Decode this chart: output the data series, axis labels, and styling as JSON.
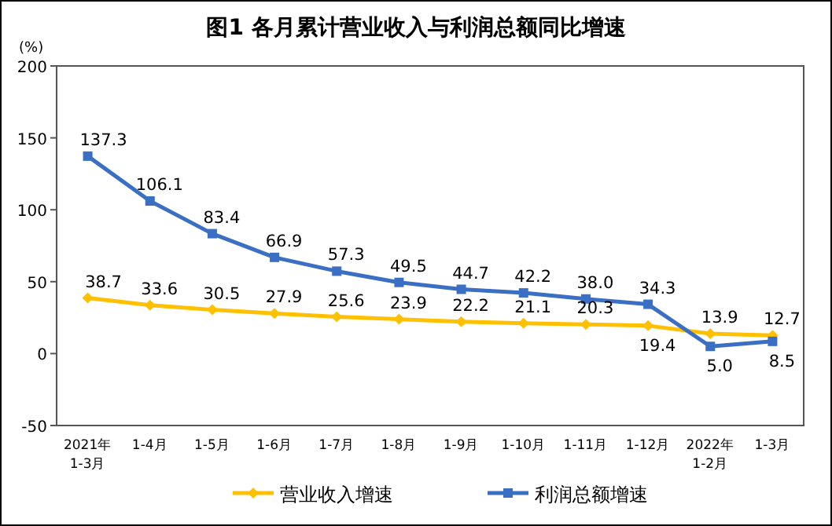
{
  "chart_data": {
    "type": "line",
    "title": "图1  各月累计营业收入与利润总额同比增速",
    "ylabel": "(%)",
    "categories": [
      "2021年\n1-3月",
      "1-4月",
      "1-5月",
      "1-6月",
      "1-7月",
      "1-8月",
      "1-9月",
      "1-10月",
      "1-11月",
      "1-12月",
      "2022年\n1-2月",
      "1-3月"
    ],
    "series": [
      {
        "name": "营业收入增速",
        "color": "#ffc000",
        "marker": "diamond",
        "values": [
          38.7,
          33.6,
          30.5,
          27.9,
          25.6,
          23.9,
          22.2,
          21.1,
          20.3,
          19.4,
          13.9,
          12.7
        ],
        "value_labels": [
          "38.7",
          "33.6",
          "30.5",
          "27.9",
          "25.6",
          "23.9",
          "22.2",
          "21.1",
          "20.3",
          "19.4",
          "13.9",
          "12.7"
        ]
      },
      {
        "name": "利润总额增速",
        "color": "#3a6fc4",
        "marker": "square",
        "values": [
          137.3,
          106.1,
          83.4,
          66.9,
          57.3,
          49.5,
          44.7,
          42.2,
          38.0,
          34.3,
          5.0,
          8.5
        ],
        "value_labels": [
          "137.3",
          "106.1",
          "83.4",
          "66.9",
          "57.3",
          "49.5",
          "44.7",
          "42.2",
          "38.0",
          "34.3",
          "5.0",
          "8.5"
        ]
      }
    ],
    "ylim": [
      -50,
      200
    ],
    "yticks": [
      -50,
      0,
      50,
      100,
      150,
      200
    ],
    "legend": "bottom"
  }
}
